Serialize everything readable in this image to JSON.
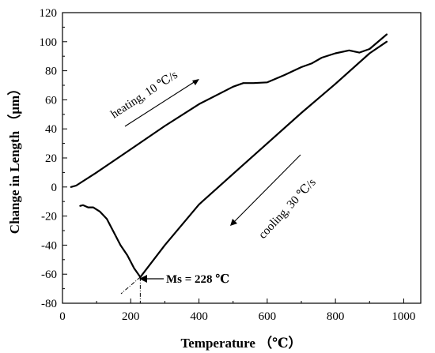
{
  "chart_data": {
    "type": "line",
    "title": "",
    "xlabel": "Temperature （℃）",
    "ylabel": "Change in Length （μm）",
    "xlim": [
      0,
      1050
    ],
    "ylim": [
      -80,
      120
    ],
    "xticks": [
      0,
      200,
      400,
      600,
      800,
      1000
    ],
    "yticks": [
      -80,
      -60,
      -40,
      -20,
      0,
      20,
      40,
      60,
      80,
      100,
      120
    ],
    "grid": false,
    "legend": "none",
    "series": [
      {
        "color": "#000000",
        "x": [
          25,
          40,
          100,
          200,
          300,
          400,
          500,
          530,
          560,
          600,
          650,
          700,
          730,
          760,
          800,
          840,
          870,
          900,
          930,
          950
        ],
        "y": [
          0,
          1,
          10,
          26,
          42,
          57,
          69,
          71.5,
          71.5,
          72,
          77,
          82.5,
          85,
          89,
          92,
          94,
          92.5,
          95,
          101,
          105
        ]
      },
      {
        "color": "#000000",
        "x": [
          950,
          900,
          800,
          700,
          600,
          500,
          400,
          300,
          228
        ],
        "y": [
          100,
          92,
          71,
          51,
          30,
          9,
          -12,
          -40,
          -62
        ]
      },
      {
        "color": "#000000",
        "x": [
          228,
          210,
          190,
          170,
          150,
          130,
          110,
          90,
          75,
          60,
          52
        ],
        "y": [
          -62,
          -56,
          -47,
          -40,
          -31,
          -22,
          -17,
          -14,
          -14,
          -12.5,
          -13
        ]
      }
    ],
    "annotations": {
      "heating": "heating, 10 ℃/s",
      "cooling": "cooling, 30 ℃/s",
      "ms": "Ms = 228 ℃"
    },
    "ms_point": {
      "x": 228,
      "y": -62
    }
  }
}
